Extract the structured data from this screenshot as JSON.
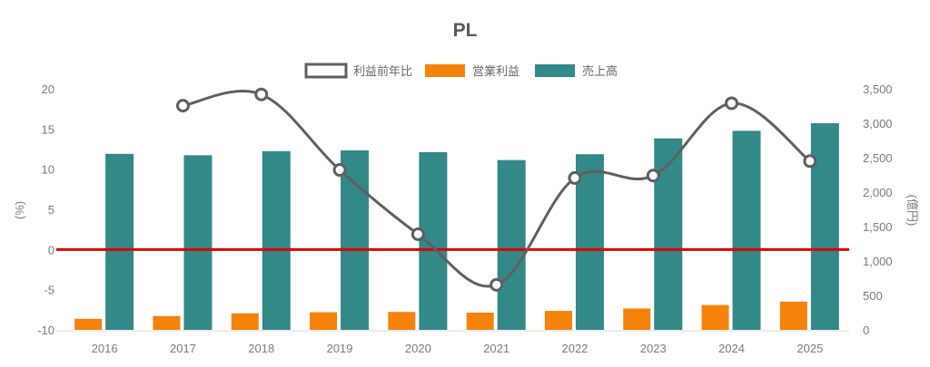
{
  "chart_data": {
    "type": "bar",
    "title": "PL",
    "categories": [
      "2016",
      "2017",
      "2018",
      "2019",
      "2020",
      "2021",
      "2022",
      "2023",
      "2024",
      "2025"
    ],
    "series": [
      {
        "name": "利益前年比",
        "kind": "line",
        "axis": "left",
        "color": "#5f5f5f",
        "values": [
          null,
          17.9,
          19.3,
          9.9,
          1.9,
          -4.4,
          8.9,
          9.2,
          18.2,
          11.0
        ]
      },
      {
        "name": "営業利益",
        "kind": "bar",
        "axis": "right",
        "color": "#f5820a",
        "values": [
          160,
          200,
          240,
          255,
          260,
          250,
          275,
          310,
          360,
          410
        ]
      },
      {
        "name": "売上高",
        "kind": "bar",
        "axis": "right",
        "color": "#338888",
        "values": [
          2555,
          2535,
          2595,
          2605,
          2580,
          2465,
          2550,
          2780,
          2890,
          3000
        ]
      }
    ],
    "y_left": {
      "label": "(%)",
      "min": -10,
      "max": 20,
      "ticks": [
        20,
        15,
        10,
        5,
        0,
        -5,
        -10
      ]
    },
    "y_right": {
      "label": "(億円)",
      "min": 0,
      "max": 3500,
      "ticks": [
        0,
        500,
        1000,
        1500,
        2000,
        2500,
        3000,
        3500
      ],
      "tick_labels": [
        "0",
        "500",
        "1,000",
        "1,500",
        "2,000",
        "2,500",
        "3,000",
        "3,500"
      ]
    },
    "zero_line_color": "#e00000",
    "legend_position": "top-center",
    "grid": false
  }
}
